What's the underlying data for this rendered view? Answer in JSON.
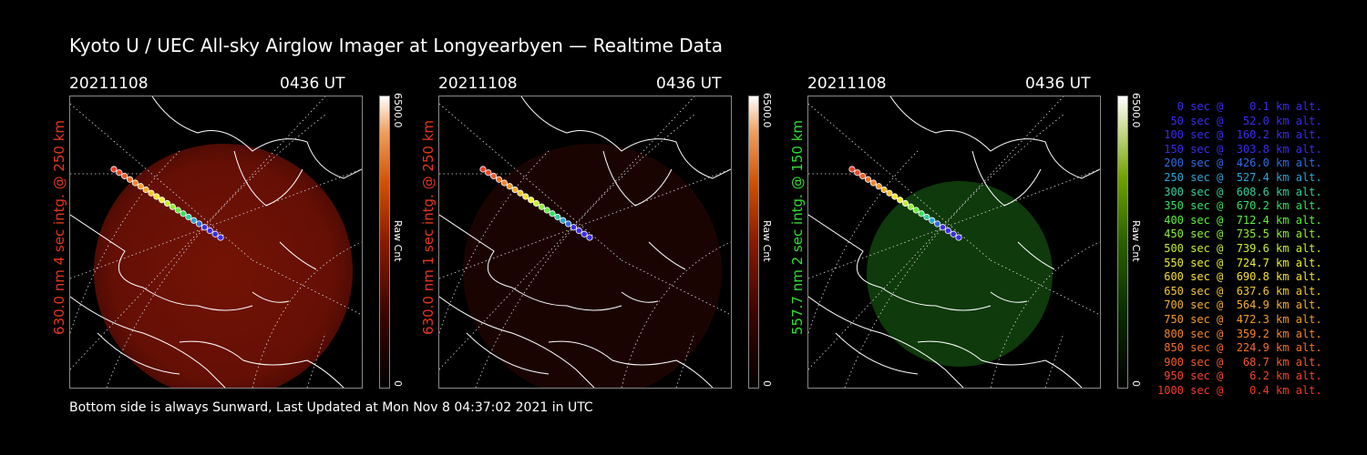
{
  "title": "Kyoto U / UEC All-sky Airglow Imager at Longyearbyen — Realtime Data",
  "footer": "Bottom side is always Sunward, Last Updated at Mon Nov  8 04:37:02 2021 in UTC",
  "panels": [
    {
      "date": "20211108",
      "time": "0436 UT",
      "side_label": "630.0 nm 4 sec intg. @ 250 km",
      "side_color": "#e8351c",
      "cbar_top": "6500.0",
      "cbar_bottom": "0",
      "cbar_unit": "Raw Cnt",
      "glow": "red-strong"
    },
    {
      "date": "20211108",
      "time": "0436 UT",
      "side_label": "630.0 nm 1 sec intg. @ 250 km",
      "side_color": "#e8351c",
      "cbar_top": "6500.0",
      "cbar_bottom": "0",
      "cbar_unit": "Raw Cnt",
      "glow": "red-faint"
    },
    {
      "date": "20211108",
      "time": "0436 UT",
      "side_label": "557.7 nm 2 sec intg. @ 150 km",
      "side_color": "#2ee02e",
      "cbar_top": "6500.0",
      "cbar_bottom": "0",
      "cbar_unit": "Raw Cnt",
      "glow": "green"
    }
  ],
  "legend": [
    {
      "text": "   0 sec @    0.1 km alt.",
      "color": "#3a2cf0"
    },
    {
      "text": "  50 sec @   52.0 km alt.",
      "color": "#3a2cf0"
    },
    {
      "text": " 100 sec @  160.2 km alt.",
      "color": "#3a2cf0"
    },
    {
      "text": " 150 sec @  303.8 km alt.",
      "color": "#3a2cf0"
    },
    {
      "text": " 200 sec @  426.0 km alt.",
      "color": "#2f6ce8"
    },
    {
      "text": " 250 sec @  527.4 km alt.",
      "color": "#2aa6d8"
    },
    {
      "text": " 300 sec @  608.6 km alt.",
      "color": "#2fd0a0"
    },
    {
      "text": " 350 sec @  670.2 km alt.",
      "color": "#33e060"
    },
    {
      "text": " 400 sec @  712.4 km alt.",
      "color": "#5ef03a"
    },
    {
      "text": " 450 sec @  735.5 km alt.",
      "color": "#8ef032"
    },
    {
      "text": " 500 sec @  739.6 km alt.",
      "color": "#c6f030"
    },
    {
      "text": " 550 sec @  724.7 km alt.",
      "color": "#eef030"
    },
    {
      "text": " 600 sec @  690.8 km alt.",
      "color": "#f5e02c"
    },
    {
      "text": " 650 sec @  637.6 km alt.",
      "color": "#f5c82a"
    },
    {
      "text": " 700 sec @  564.9 km alt.",
      "color": "#f5b028"
    },
    {
      "text": " 750 sec @  472.3 km alt.",
      "color": "#f59a28"
    },
    {
      "text": " 800 sec @  359.2 km alt.",
      "color": "#f58428"
    },
    {
      "text": " 850 sec @  224.9 km alt.",
      "color": "#f56e28"
    },
    {
      "text": " 900 sec @   68.7 km alt.",
      "color": "#f55a28"
    },
    {
      "text": " 950 sec @    6.2 km alt.",
      "color": "#f54628"
    },
    {
      "text": "1000 sec @    0.4 km alt.",
      "color": "#f53a28"
    }
  ]
}
